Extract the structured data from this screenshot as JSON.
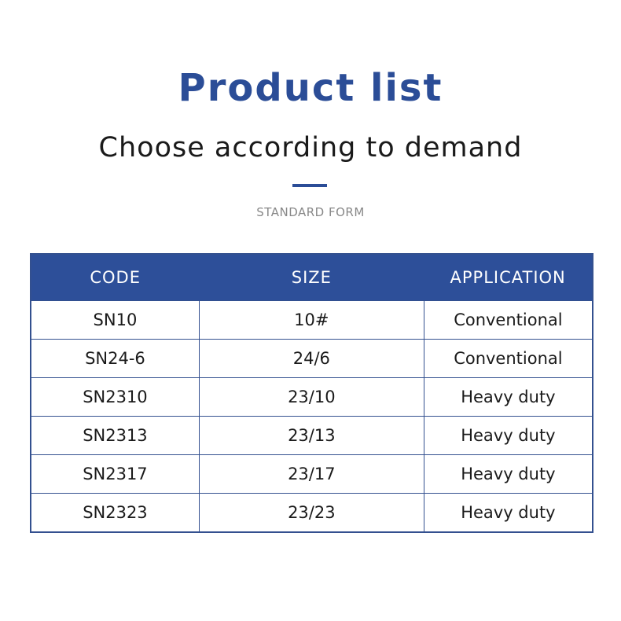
{
  "title": "Product list",
  "subtitle": "Choose according to demand",
  "form_label": "STANDARD FORM",
  "colors": {
    "accent": "#2d4f99"
  },
  "table": {
    "headers": [
      "CODE",
      "SIZE",
      "APPLICATION"
    ],
    "rows": [
      [
        "SN10",
        "10#",
        "Conventional"
      ],
      [
        "SN24-6",
        "24/6",
        "Conventional"
      ],
      [
        "SN2310",
        "23/10",
        "Heavy duty"
      ],
      [
        "SN2313",
        "23/13",
        "Heavy duty"
      ],
      [
        "SN2317",
        "23/17",
        "Heavy duty"
      ],
      [
        "SN2323",
        "23/23",
        "Heavy duty"
      ]
    ]
  }
}
